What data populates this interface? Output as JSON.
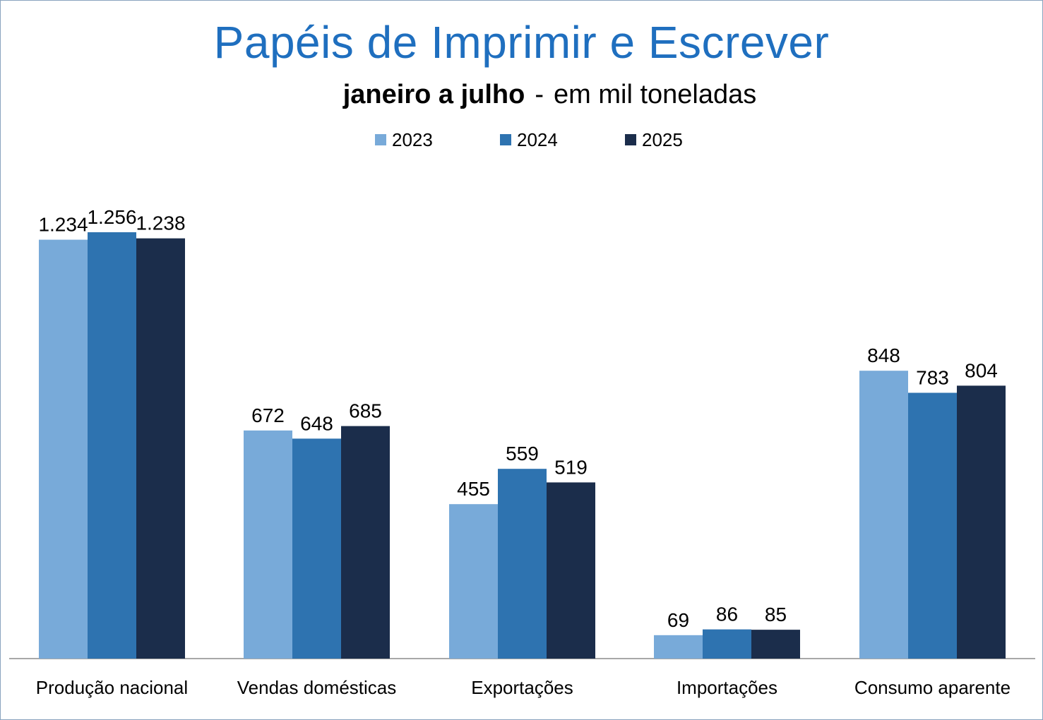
{
  "chart_data": {
    "type": "bar",
    "title": "Papéis de Imprimir e Escrever",
    "subtitle_bold": "janeiro a julho",
    "subtitle_sep": "-",
    "subtitle_rest": "em mil toneladas",
    "categories": [
      "Produção nacional",
      "Vendas domésticas",
      "Exportações",
      "Importações",
      "Consumo aparente"
    ],
    "series": [
      {
        "name": "2023",
        "color": "#78aad9",
        "values": [
          1234,
          672,
          455,
          69,
          848
        ],
        "labels": [
          "1.234",
          "672",
          "455",
          "69",
          "848"
        ]
      },
      {
        "name": "2024",
        "color": "#2e73b0",
        "values": [
          1256,
          648,
          559,
          86,
          783
        ],
        "labels": [
          "1.256",
          "648",
          "559",
          "86",
          "783"
        ]
      },
      {
        "name": "2025",
        "color": "#1b2d4b",
        "values": [
          1238,
          685,
          519,
          85,
          804
        ],
        "labels": [
          "1.238",
          "685",
          "519",
          "85",
          "804"
        ]
      }
    ],
    "legend_position": "top",
    "grid": false,
    "ylim": [
      0,
      1270
    ]
  }
}
